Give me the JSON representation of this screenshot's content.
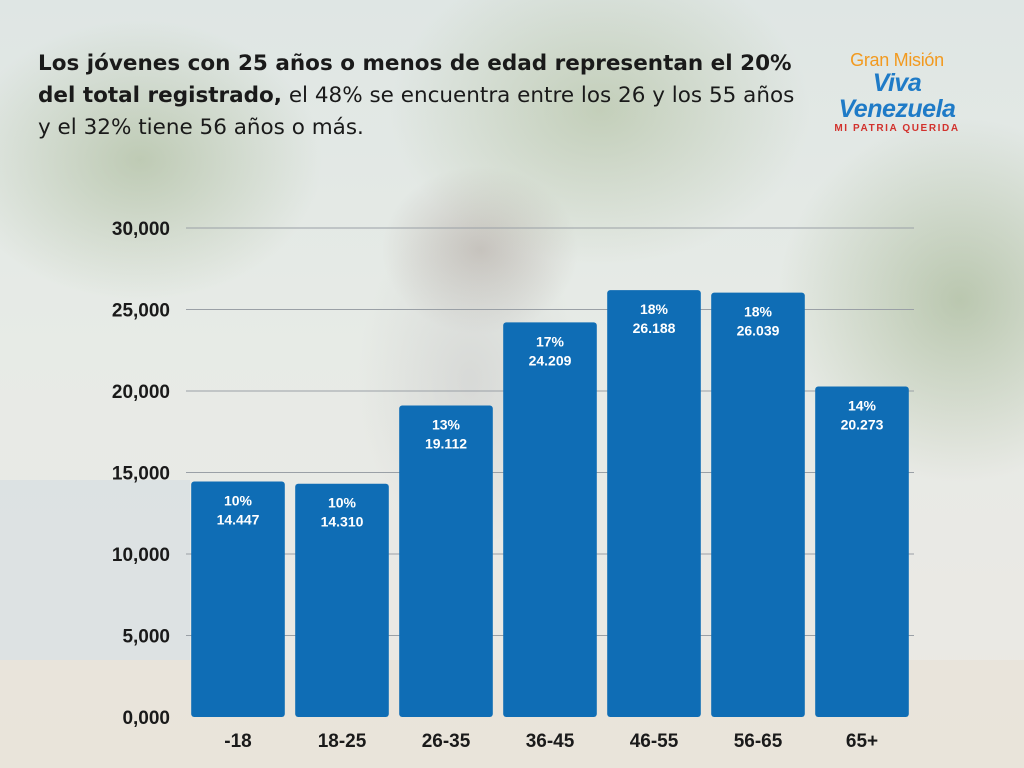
{
  "headline": {
    "bold": "Los jóvenes con 25 años o menos de edad representan el 20% del total registrado,",
    "regular": " el 48% se encuentra entre los 26 y los 55 años y el 32% tiene 56 años o más."
  },
  "logo": {
    "top": "Gran Misión",
    "middle": "Viva Venezuela",
    "bottom": "MI PATRIA QUERIDA"
  },
  "colors": {
    "bar": "#0f6db5",
    "grid": "#9aa0a6",
    "logo_orange": "#f29a1f",
    "logo_blue": "#1f7bc7",
    "logo_red": "#d2322d"
  },
  "chart_data": {
    "type": "bar",
    "categories": [
      "-18",
      "18-25",
      "26-35",
      "36-45",
      "46-55",
      "56-65",
      "65+"
    ],
    "values": [
      14447,
      14310,
      19112,
      24209,
      26188,
      26039,
      20273
    ],
    "percent_labels": [
      "10%",
      "10%",
      "13%",
      "17%",
      "18%",
      "18%",
      "14%"
    ],
    "value_labels": [
      "14.447",
      "14.310",
      "19.112",
      "24.209",
      "26.188",
      "26.039",
      "20.273"
    ],
    "ylim": [
      0,
      30000
    ],
    "yticks": [
      0,
      5000,
      10000,
      15000,
      20000,
      25000,
      30000
    ],
    "ytick_labels": [
      "0,000",
      "5,000",
      "10,000",
      "15,000",
      "20,000",
      "25,000",
      "30,000"
    ],
    "grid": true,
    "legend": false
  }
}
